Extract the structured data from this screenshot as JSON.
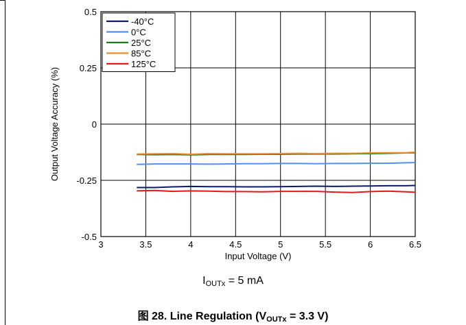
{
  "figure": {
    "condition_main": "I",
    "condition_sub": "OUTx",
    "condition_rest": " = 5 mA",
    "caption_main": "图 28. Line Regulation (V",
    "caption_sub": "OUTx",
    "caption_rest": " = 3.3 V)"
  },
  "chart_data": {
    "type": "line",
    "xlabel": "Input Voltage (V)",
    "ylabel": "Output Voltage Accuracy (%)",
    "xlim": [
      3,
      6.5
    ],
    "ylim": [
      -0.5,
      0.5
    ],
    "x_ticks": [
      "3",
      "3.5",
      "4",
      "4.5",
      "5",
      "5.5",
      "6",
      "6.5"
    ],
    "y_ticks": [
      "0.5",
      "0.25",
      "0",
      "-0.25",
      "-0.5"
    ],
    "grid": true,
    "legend_position": "top-left",
    "x": [
      3.4,
      3.6,
      3.8,
      4.0,
      4.2,
      4.4,
      4.6,
      4.8,
      5.0,
      5.2,
      5.4,
      5.6,
      5.8,
      6.0,
      6.2,
      6.4,
      6.5
    ],
    "series": [
      {
        "name": "-40°C",
        "color": "#0a1a6e",
        "values": [
          -0.282,
          -0.282,
          -0.279,
          -0.277,
          -0.278,
          -0.278,
          -0.279,
          -0.279,
          -0.278,
          -0.277,
          -0.276,
          -0.277,
          -0.276,
          -0.275,
          -0.274,
          -0.274,
          -0.273
        ]
      },
      {
        "name": "0°C",
        "color": "#4f8ff7",
        "values": [
          -0.179,
          -0.177,
          -0.177,
          -0.177,
          -0.178,
          -0.177,
          -0.176,
          -0.176,
          -0.175,
          -0.175,
          -0.176,
          -0.175,
          -0.175,
          -0.174,
          -0.174,
          -0.172,
          -0.171
        ]
      },
      {
        "name": "25°C",
        "color": "#1c7a1c",
        "values": [
          -0.135,
          -0.136,
          -0.135,
          -0.137,
          -0.135,
          -0.135,
          -0.135,
          -0.134,
          -0.134,
          -0.133,
          -0.133,
          -0.133,
          -0.132,
          -0.131,
          -0.13,
          -0.128,
          -0.127
        ]
      },
      {
        "name": "85°C",
        "color": "#f08a2a",
        "values": [
          -0.133,
          -0.132,
          -0.131,
          -0.134,
          -0.131,
          -0.132,
          -0.132,
          -0.132,
          -0.131,
          -0.13,
          -0.131,
          -0.13,
          -0.13,
          -0.128,
          -0.127,
          -0.127,
          -0.124
        ]
      },
      {
        "name": "125°C",
        "color": "#e81818",
        "values": [
          -0.297,
          -0.295,
          -0.299,
          -0.297,
          -0.298,
          -0.3,
          -0.3,
          -0.301,
          -0.299,
          -0.299,
          -0.299,
          -0.302,
          -0.304,
          -0.3,
          -0.298,
          -0.301,
          -0.303
        ]
      }
    ]
  }
}
